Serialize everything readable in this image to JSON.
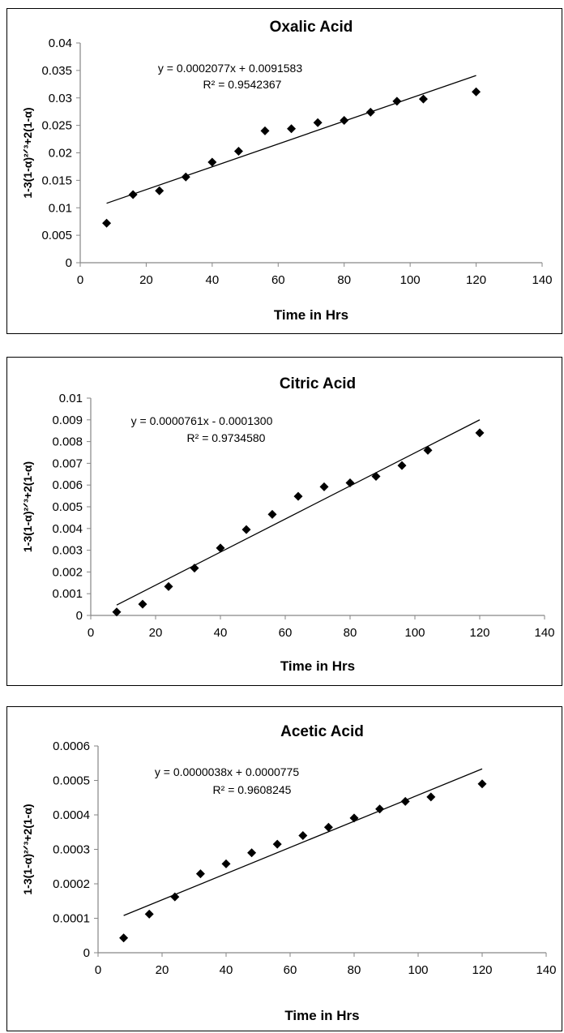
{
  "chart_data": [
    {
      "type": "scatter",
      "title": "Oxalic Acid",
      "xlabel": "Time in Hrs",
      "ylabel": "1-3(1-α)²ᐟ³+2(1-α)",
      "xlim": [
        0,
        140
      ],
      "ylim": [
        0,
        0.04
      ],
      "xticks": [
        0,
        20,
        40,
        60,
        80,
        100,
        120,
        140
      ],
      "yticks": [
        "0",
        "0.005",
        "0.01",
        "0.015",
        "0.02",
        "0.025",
        "0.03",
        "0.035",
        "0.04"
      ],
      "grid": false,
      "points": [
        {
          "x": 8,
          "y": 0.0072
        },
        {
          "x": 16,
          "y": 0.0124
        },
        {
          "x": 24,
          "y": 0.0131
        },
        {
          "x": 32,
          "y": 0.0156
        },
        {
          "x": 40,
          "y": 0.0183
        },
        {
          "x": 48,
          "y": 0.0203
        },
        {
          "x": 56,
          "y": 0.024
        },
        {
          "x": 64,
          "y": 0.0244
        },
        {
          "x": 72,
          "y": 0.0255
        },
        {
          "x": 80,
          "y": 0.0259
        },
        {
          "x": 88,
          "y": 0.0274
        },
        {
          "x": 96,
          "y": 0.0294
        },
        {
          "x": 104,
          "y": 0.0298
        },
        {
          "x": 120,
          "y": 0.0311
        }
      ],
      "trendline": {
        "slope": 0.0002077,
        "intercept": 0.0091583,
        "x_start": 8,
        "x_end": 120
      },
      "equation": "y = 0.0002077x + 0.0091583",
      "r_squared": "R² = 0.9542367"
    },
    {
      "type": "scatter",
      "title": "Citric Acid",
      "xlabel": "Time in Hrs",
      "ylabel": "1-3(1-α)²ᐟ³+2(1-α)",
      "xlim": [
        0,
        140
      ],
      "ylim": [
        0,
        0.01
      ],
      "xticks": [
        0,
        20,
        40,
        60,
        80,
        100,
        120,
        140
      ],
      "yticks": [
        "0",
        "0.001",
        "0.002",
        "0.003",
        "0.004",
        "0.005",
        "0.006",
        "0.007",
        "0.008",
        "0.009",
        "0.01"
      ],
      "grid": false,
      "points": [
        {
          "x": 8,
          "y": 0.00016
        },
        {
          "x": 16,
          "y": 0.00052
        },
        {
          "x": 24,
          "y": 0.00133
        },
        {
          "x": 32,
          "y": 0.00218
        },
        {
          "x": 40,
          "y": 0.0031
        },
        {
          "x": 48,
          "y": 0.00395
        },
        {
          "x": 56,
          "y": 0.00465
        },
        {
          "x": 64,
          "y": 0.00548
        },
        {
          "x": 72,
          "y": 0.00592
        },
        {
          "x": 80,
          "y": 0.0061
        },
        {
          "x": 88,
          "y": 0.0064
        },
        {
          "x": 96,
          "y": 0.0069
        },
        {
          "x": 104,
          "y": 0.0076
        },
        {
          "x": 120,
          "y": 0.0084
        }
      ],
      "trendline": {
        "slope": 7.61e-05,
        "intercept": -0.00013,
        "x_start": 8,
        "x_end": 120
      },
      "equation": "y = 0.0000761x - 0.0001300",
      "r_squared": "R² = 0.9734580"
    },
    {
      "type": "scatter",
      "title": "Acetic Acid",
      "xlabel": "Time in Hrs",
      "ylabel": "1-3(1-α)²ᐟ³+2(1-α)",
      "xlim": [
        0,
        140
      ],
      "ylim": [
        0,
        0.0006
      ],
      "xticks": [
        0,
        20,
        40,
        60,
        80,
        100,
        120,
        140
      ],
      "yticks": [
        "0",
        "0.0001",
        "0.0002",
        "0.0003",
        "0.0004",
        "0.0005",
        "0.0006"
      ],
      "grid": false,
      "points": [
        {
          "x": 8,
          "y": 4.3e-05
        },
        {
          "x": 16,
          "y": 0.000112
        },
        {
          "x": 24,
          "y": 0.000162
        },
        {
          "x": 32,
          "y": 0.000229
        },
        {
          "x": 40,
          "y": 0.000258
        },
        {
          "x": 48,
          "y": 0.00029
        },
        {
          "x": 56,
          "y": 0.000315
        },
        {
          "x": 64,
          "y": 0.00034
        },
        {
          "x": 72,
          "y": 0.000364
        },
        {
          "x": 80,
          "y": 0.000391
        },
        {
          "x": 88,
          "y": 0.000417
        },
        {
          "x": 96,
          "y": 0.000439
        },
        {
          "x": 104,
          "y": 0.000452
        },
        {
          "x": 120,
          "y": 0.00049
        }
      ],
      "trendline": {
        "slope": 3.8e-06,
        "intercept": 7.75e-05,
        "x_start": 8,
        "x_end": 120
      },
      "equation": "y = 0.0000038x + 0.0000775",
      "r_squared": "R² = 0.9608245"
    }
  ]
}
